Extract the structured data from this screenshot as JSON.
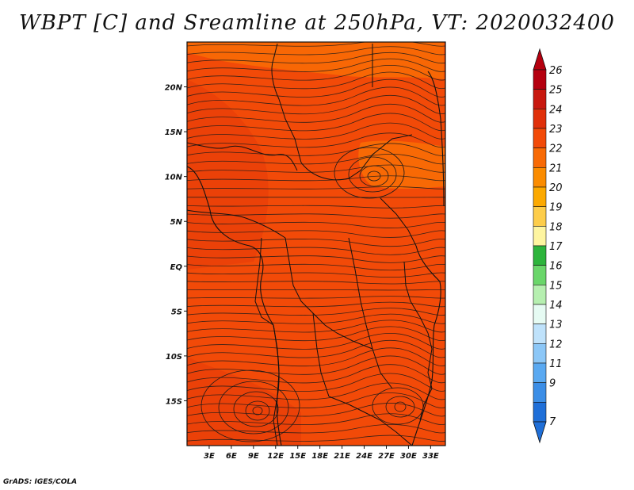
{
  "title": "WBPT [C] and Sreamline at 250hPa, VT: 2020032400",
  "footer": "GrADS: IGES/COLA",
  "map": {
    "lat_labels": [
      "20N",
      "15N",
      "10N",
      "5N",
      "EQ",
      "5S",
      "10S",
      "15S"
    ],
    "lat_values": [
      20,
      15,
      10,
      5,
      0,
      -5,
      -10,
      -15
    ],
    "lon_labels": [
      "3E",
      "6E",
      "9E",
      "12E",
      "15E",
      "18E",
      "21E",
      "24E",
      "27E",
      "30E",
      "33E"
    ],
    "lon_values": [
      3,
      6,
      9,
      12,
      15,
      18,
      21,
      24,
      27,
      30,
      33
    ],
    "lon_range": [
      0,
      35
    ],
    "lat_range": [
      -20,
      25
    ]
  },
  "colorbar": {
    "labels": [
      "26",
      "25",
      "24",
      "23",
      "22",
      "21",
      "20",
      "19",
      "18",
      "17",
      "16",
      "15",
      "14",
      "13",
      "12",
      "11",
      "9",
      "7"
    ],
    "colors": [
      "#b5000f",
      "#c8180f",
      "#e0300a",
      "#f24a08",
      "#f86a05",
      "#fb8c00",
      "#fca900",
      "#fdcd4a",
      "#fef5a0",
      "#2db43c",
      "#6ad66a",
      "#b6efb0",
      "#e6fbf3",
      "#bfe2fb",
      "#8cc7f7",
      "#5aa9f1",
      "#3c8ee6",
      "#1f6fd8"
    ]
  }
}
